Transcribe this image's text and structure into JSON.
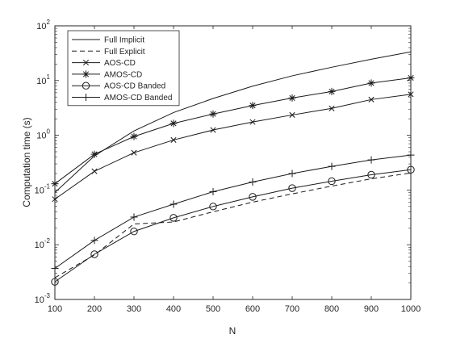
{
  "chart_data": {
    "type": "line",
    "xlabel": "N",
    "ylabel": "Computation time (s)",
    "yscale": "log",
    "xlim": [
      100,
      1000
    ],
    "ylim": [
      0.001,
      100
    ],
    "x_ticks": [
      100,
      200,
      300,
      400,
      500,
      600,
      700,
      800,
      900,
      1000
    ],
    "x_tick_labels": [
      "100",
      "200",
      "300",
      "400",
      "500",
      "600",
      "700",
      "800",
      "900",
      "1000"
    ],
    "y_ticks": [
      0.001,
      0.01,
      0.1,
      1,
      10,
      100
    ],
    "y_tick_exponents": [
      "-3",
      "-2",
      "-1",
      "0",
      "1",
      "2"
    ],
    "y_tick_base": "10",
    "grid": false,
    "legend_location": "top-left",
    "x": [
      100,
      200,
      300,
      400,
      500,
      600,
      700,
      800,
      900,
      1000
    ],
    "series": [
      {
        "name": "Full Implicit",
        "line": "solid",
        "marker": "none",
        "values": [
          0.09,
          0.42,
          1.2,
          2.6,
          4.7,
          7.9,
          12.2,
          17.5,
          24.5,
          33.5
        ]
      },
      {
        "name": "Full Explicit",
        "line": "dashed",
        "marker": "none",
        "values": [
          0.0025,
          0.0065,
          0.024,
          0.026,
          0.04,
          0.06,
          0.085,
          0.118,
          0.16,
          0.205
        ]
      },
      {
        "name": "AOS-CD",
        "line": "solid",
        "marker": "x",
        "values": [
          0.068,
          0.22,
          0.48,
          0.82,
          1.25,
          1.75,
          2.35,
          3.1,
          4.5,
          5.6
        ]
      },
      {
        "name": "AMOS-CD",
        "line": "solid",
        "marker": "star",
        "values": [
          0.13,
          0.45,
          0.95,
          1.65,
          2.45,
          3.5,
          4.8,
          6.3,
          9.0,
          11.2
        ]
      },
      {
        "name": "AOS-CD Banded",
        "line": "solid",
        "marker": "circle",
        "values": [
          0.0021,
          0.0067,
          0.0175,
          0.031,
          0.05,
          0.075,
          0.108,
          0.145,
          0.19,
          0.235
        ]
      },
      {
        "name": "AMOS-CD Banded",
        "line": "solid",
        "marker": "plus",
        "values": [
          0.0037,
          0.012,
          0.032,
          0.055,
          0.093,
          0.14,
          0.2,
          0.27,
          0.355,
          0.435
        ]
      }
    ]
  }
}
